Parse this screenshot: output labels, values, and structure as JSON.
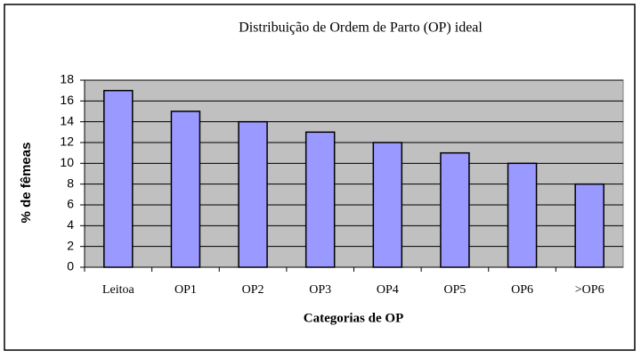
{
  "chart_data": {
    "type": "bar",
    "title": "Distribuição de Ordem de Parto (OP) ideal",
    "x_label": "Categorias de OP",
    "y_label": "% de fêmeas",
    "categories": [
      "Leitoa",
      "OP1",
      "OP2",
      "OP3",
      "OP4",
      "OP5",
      "OP6",
      ">OP6"
    ],
    "values": [
      17,
      15,
      14,
      13,
      12,
      11,
      10,
      8
    ],
    "color": "#9999ff",
    "ylim": [
      0,
      18
    ],
    "yticks": [
      0,
      2,
      4,
      6,
      8,
      10,
      12,
      14,
      16,
      18
    ],
    "grid": true
  }
}
